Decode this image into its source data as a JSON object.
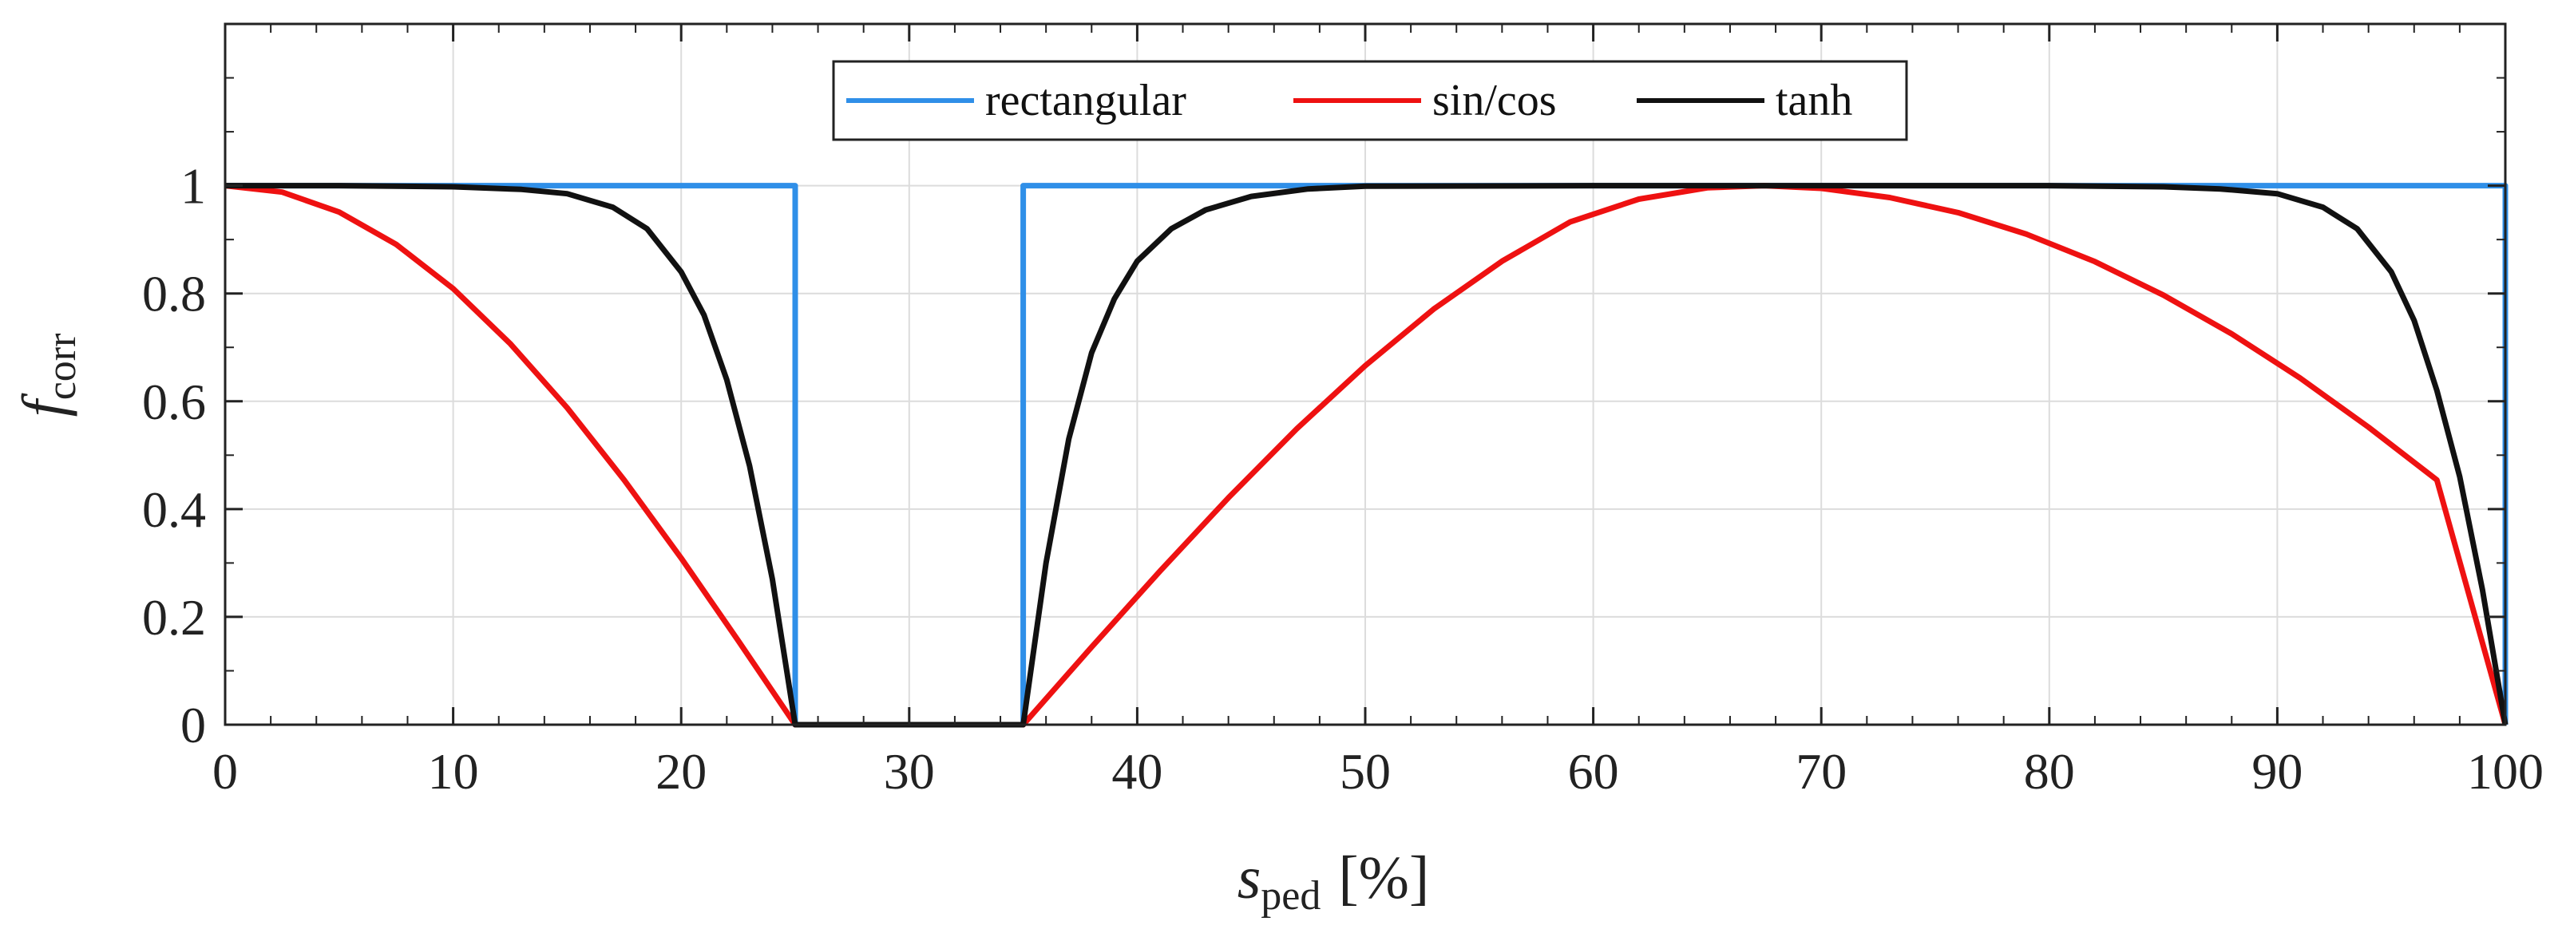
{
  "chart_data": {
    "type": "line",
    "title": "",
    "xlabel": {
      "main": "s",
      "sub": "ped",
      "unit": "[%]"
    },
    "ylabel": {
      "main": "f",
      "sub": "corr"
    },
    "xlim": [
      0,
      100
    ],
    "ylim": [
      0,
      1.3
    ],
    "x_ticks": [
      0,
      10,
      20,
      30,
      40,
      50,
      60,
      70,
      80,
      90,
      100
    ],
    "x_tick_labels": [
      "0",
      "10",
      "20",
      "30",
      "40",
      "50",
      "60",
      "70",
      "80",
      "90",
      "100"
    ],
    "y_ticks": [
      0,
      0.2,
      0.4,
      0.6,
      0.8,
      1
    ],
    "y_tick_labels": [
      "0",
      "0.2",
      "0.4",
      "0.6",
      "0.8",
      "1"
    ],
    "grid": true,
    "legend_position": "top-center",
    "series": [
      {
        "name": "rectangular",
        "color": "#2f8fe8",
        "x": [
          0,
          25,
          25,
          35,
          35,
          100,
          100
        ],
        "y": [
          1,
          1,
          0,
          0,
          1,
          1,
          0
        ]
      },
      {
        "name": "sin/cos",
        "color": "#ee1111",
        "x": [
          0,
          2.5,
          5,
          7.5,
          10,
          12.5,
          15,
          17.5,
          20,
          22.5,
          25,
          30,
          35,
          38,
          41,
          44,
          47,
          50,
          53,
          56,
          59,
          62,
          65,
          67.5,
          70,
          73,
          76,
          79,
          82,
          85,
          88,
          91,
          94,
          97,
          100
        ],
        "y": [
          1,
          0.988,
          0.951,
          0.891,
          0.809,
          0.707,
          0.588,
          0.454,
          0.309,
          0.156,
          0,
          0,
          0,
          0.144,
          0.285,
          0.421,
          0.549,
          0.666,
          0.771,
          0.86,
          0.933,
          0.975,
          0.996,
          1,
          0.995,
          0.978,
          0.95,
          0.91,
          0.859,
          0.797,
          0.725,
          0.643,
          0.552,
          0.454,
          0
        ]
      },
      {
        "name": "tanh",
        "color": "#111111",
        "x": [
          0,
          5,
          10,
          13,
          15,
          17,
          18.5,
          20,
          21,
          22,
          23,
          24,
          25,
          30,
          35,
          36,
          37,
          38,
          39,
          40,
          41.5,
          43,
          45,
          47.5,
          50,
          60,
          70,
          80,
          85,
          87.5,
          90,
          92,
          93.5,
          95,
          96,
          97,
          98,
          99,
          100
        ],
        "y": [
          1,
          1,
          0.998,
          0.993,
          0.985,
          0.96,
          0.92,
          0.84,
          0.76,
          0.64,
          0.48,
          0.27,
          0,
          0,
          0,
          0.3,
          0.53,
          0.69,
          0.79,
          0.86,
          0.92,
          0.955,
          0.98,
          0.994,
          0.999,
          1,
          1,
          1,
          0.998,
          0.994,
          0.985,
          0.96,
          0.92,
          0.84,
          0.75,
          0.62,
          0.46,
          0.25,
          0
        ]
      }
    ]
  }
}
